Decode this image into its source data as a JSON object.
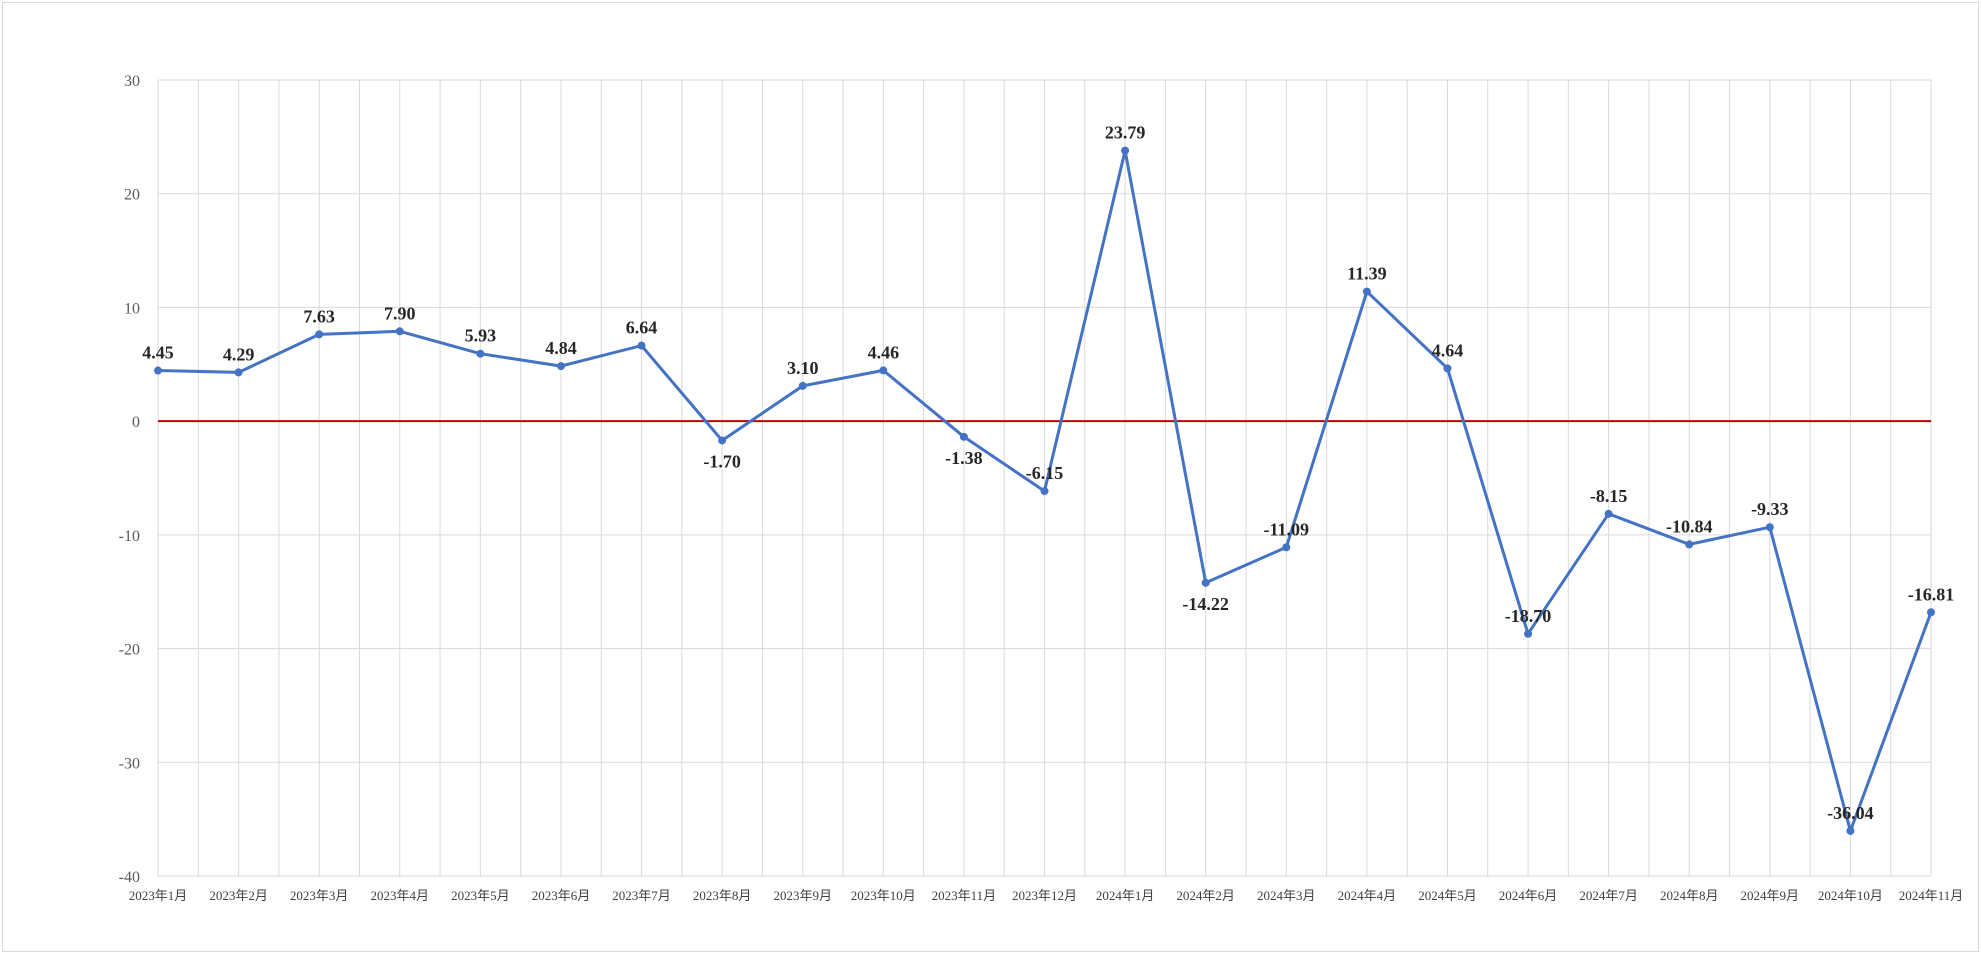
{
  "chart_data": {
    "type": "line",
    "title": "",
    "xlabel": "",
    "ylabel": "",
    "ylim": [
      -40,
      30
    ],
    "yticks": [
      30,
      20,
      10,
      0,
      -10,
      -20,
      -30,
      -40
    ],
    "grid": true,
    "legend": "none",
    "reference_line": {
      "y": 0,
      "color": "#c00000"
    },
    "series_color": "#4472c4",
    "categories": [
      "2023年1月",
      "2023年2月",
      "2023年3月",
      "2023年4月",
      "2023年5月",
      "2023年6月",
      "2023年7月",
      "2023年8月",
      "2023年9月",
      "2023年10月",
      "2023年11月",
      "2023年12月",
      "2024年1月",
      "2024年2月",
      "2024年3月",
      "2024年4月",
      "2024年5月",
      "2024年6月",
      "2024年7月",
      "2024年8月",
      "2024年9月",
      "2024年10月",
      "2024年11月"
    ],
    "series": [
      {
        "values": [
          4.45,
          4.29,
          7.63,
          7.9,
          5.93,
          4.84,
          6.64,
          -1.7,
          3.1,
          4.46,
          -1.38,
          -6.15,
          23.79,
          -14.22,
          -11.09,
          11.39,
          4.64,
          -18.7,
          -8.15,
          -10.84,
          -9.33,
          -36.04,
          -16.81
        ],
        "labels": [
          "4.45",
          "4.29",
          "7.63",
          "7.90",
          "5.93",
          "4.84",
          "6.64",
          "-1.70",
          "3.10",
          "4.46",
          "-1.38",
          "-6.15",
          "23.79",
          "-14.22",
          "-11.09",
          "11.39",
          "4.64",
          "-18.70",
          "-8.15",
          "-10.84",
          "-9.33",
          "-36.04",
          "-16.81"
        ]
      }
    ]
  }
}
